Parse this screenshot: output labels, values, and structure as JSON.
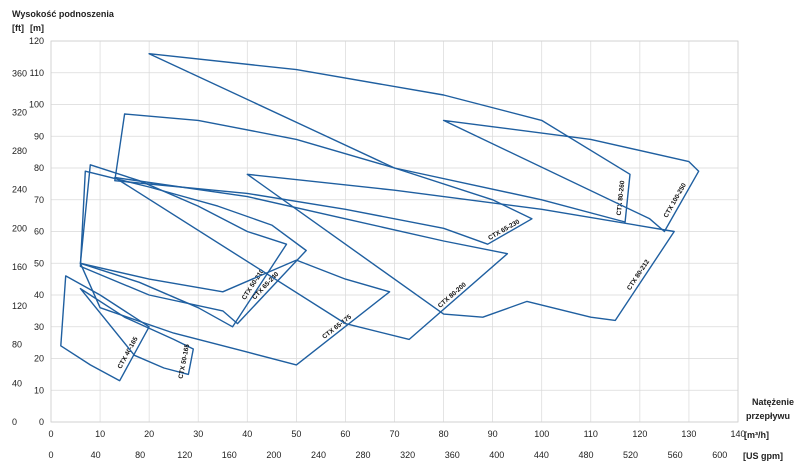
{
  "chart_data": {
    "type": "line",
    "y_title": "Wysokość podnoszenia",
    "y_unit_ft": "[ft]",
    "y_unit_m": "[m]",
    "x_title_line1": "Natężenie",
    "x_title_line2": "przepływu",
    "x_unit_m3h": "[m³/h]",
    "x_unit_gpm": "[US gpm]",
    "grid": true,
    "xlim_m3h": [
      0,
      140
    ],
    "ylim_m": [
      0,
      120
    ],
    "x_ticks_m3h": [
      "0",
      "10",
      "20",
      "30",
      "40",
      "50",
      "60",
      "70",
      "80",
      "90",
      "100",
      "110",
      "120",
      "130",
      "140"
    ],
    "x_ticks_gpm": [
      "0",
      "40",
      "80",
      "120",
      "160",
      "200",
      "240",
      "280",
      "320",
      "360",
      "400",
      "440",
      "480",
      "520",
      "560",
      "600"
    ],
    "y_ticks_m": [
      "0",
      "10",
      "20",
      "30",
      "40",
      "50",
      "60",
      "70",
      "80",
      "90",
      "100",
      "110",
      "120"
    ],
    "y_ticks_ft": [
      "0",
      "40",
      "80",
      "120",
      "160",
      "200",
      "240",
      "280",
      "320",
      "360"
    ],
    "series": [
      {
        "name": "CTX 40-165",
        "top_curve": [
          [
            3,
            46
          ],
          [
            10,
            40
          ],
          [
            16,
            34
          ],
          [
            20,
            30
          ]
        ],
        "bottom_curve": [
          [
            2,
            24
          ],
          [
            8,
            18
          ],
          [
            14,
            13
          ]
        ]
      },
      {
        "name": "CTX 50-165",
        "top_curve": [
          [
            6,
            42
          ],
          [
            15,
            33
          ],
          [
            25,
            26
          ],
          [
            29,
            23
          ]
        ],
        "bottom_curve": [
          [
            17,
            21
          ],
          [
            23,
            17
          ],
          [
            28,
            15
          ]
        ]
      },
      {
        "name": "CTX 50-210",
        "top_curve": [
          [
            8,
            81
          ],
          [
            18,
            76
          ],
          [
            30,
            68
          ],
          [
            40,
            60
          ],
          [
            48,
            56
          ]
        ],
        "bottom_curve": [
          [
            6,
            50
          ],
          [
            18,
            44
          ],
          [
            30,
            36
          ],
          [
            37,
            30
          ]
        ]
      },
      {
        "name": "CTX 65-240",
        "top_curve": [
          [
            7,
            79
          ],
          [
            20,
            74
          ],
          [
            34,
            68
          ],
          [
            45,
            62
          ],
          [
            52,
            54
          ]
        ],
        "bottom_curve": [
          [
            6,
            49
          ],
          [
            20,
            40
          ],
          [
            35,
            35
          ],
          [
            38,
            31
          ]
        ]
      },
      {
        "name": "CTX 65-175",
        "top_curve": [
          [
            6,
            50
          ],
          [
            20,
            45
          ],
          [
            35,
            41
          ],
          [
            50,
            51
          ],
          [
            60,
            45
          ],
          [
            69,
            41
          ]
        ],
        "bottom_curve": [
          [
            10,
            36
          ],
          [
            25,
            28
          ],
          [
            40,
            22
          ],
          [
            50,
            18
          ]
        ]
      },
      {
        "name": "CTX 65-230",
        "top_curve": [
          [
            15,
            97
          ],
          [
            30,
            95
          ],
          [
            50,
            89
          ],
          [
            70,
            80
          ],
          [
            90,
            70
          ],
          [
            98,
            64
          ]
        ],
        "bottom_curve": [
          [
            13,
            76
          ],
          [
            40,
            72
          ],
          [
            60,
            67
          ],
          [
            80,
            61
          ],
          [
            89,
            56
          ]
        ]
      },
      {
        "name": "CTX 80-200",
        "top_curve": [
          [
            13,
            77
          ],
          [
            40,
            71
          ],
          [
            60,
            64
          ],
          [
            80,
            57
          ],
          [
            93,
            53
          ]
        ],
        "bottom_curve": [
          [
            60,
            31
          ],
          [
            73,
            26
          ]
        ]
      },
      {
        "name": "CTX 80-212",
        "top_curve": [
          [
            40,
            78
          ],
          [
            70,
            73
          ],
          [
            100,
            67
          ],
          [
            127,
            60
          ]
        ],
        "bottom_curve": [
          [
            80,
            34
          ],
          [
            88,
            33
          ],
          [
            97,
            38
          ],
          [
            110,
            33
          ],
          [
            115,
            32
          ]
        ]
      },
      {
        "name": "CTX 80-260",
        "top_curve": [
          [
            20,
            116
          ],
          [
            50,
            111
          ],
          [
            80,
            103
          ],
          [
            100,
            95
          ],
          [
            118,
            78
          ]
        ],
        "bottom_curve": [
          [
            70,
            80
          ],
          [
            100,
            70
          ],
          [
            117,
            63
          ]
        ]
      },
      {
        "name": "CTX 100-250",
        "top_curve": [
          [
            80,
            95
          ],
          [
            110,
            89
          ],
          [
            130,
            82
          ],
          [
            132,
            79
          ]
        ],
        "bottom_curve": [
          [
            122,
            64
          ],
          [
            125,
            60
          ]
        ]
      }
    ]
  }
}
